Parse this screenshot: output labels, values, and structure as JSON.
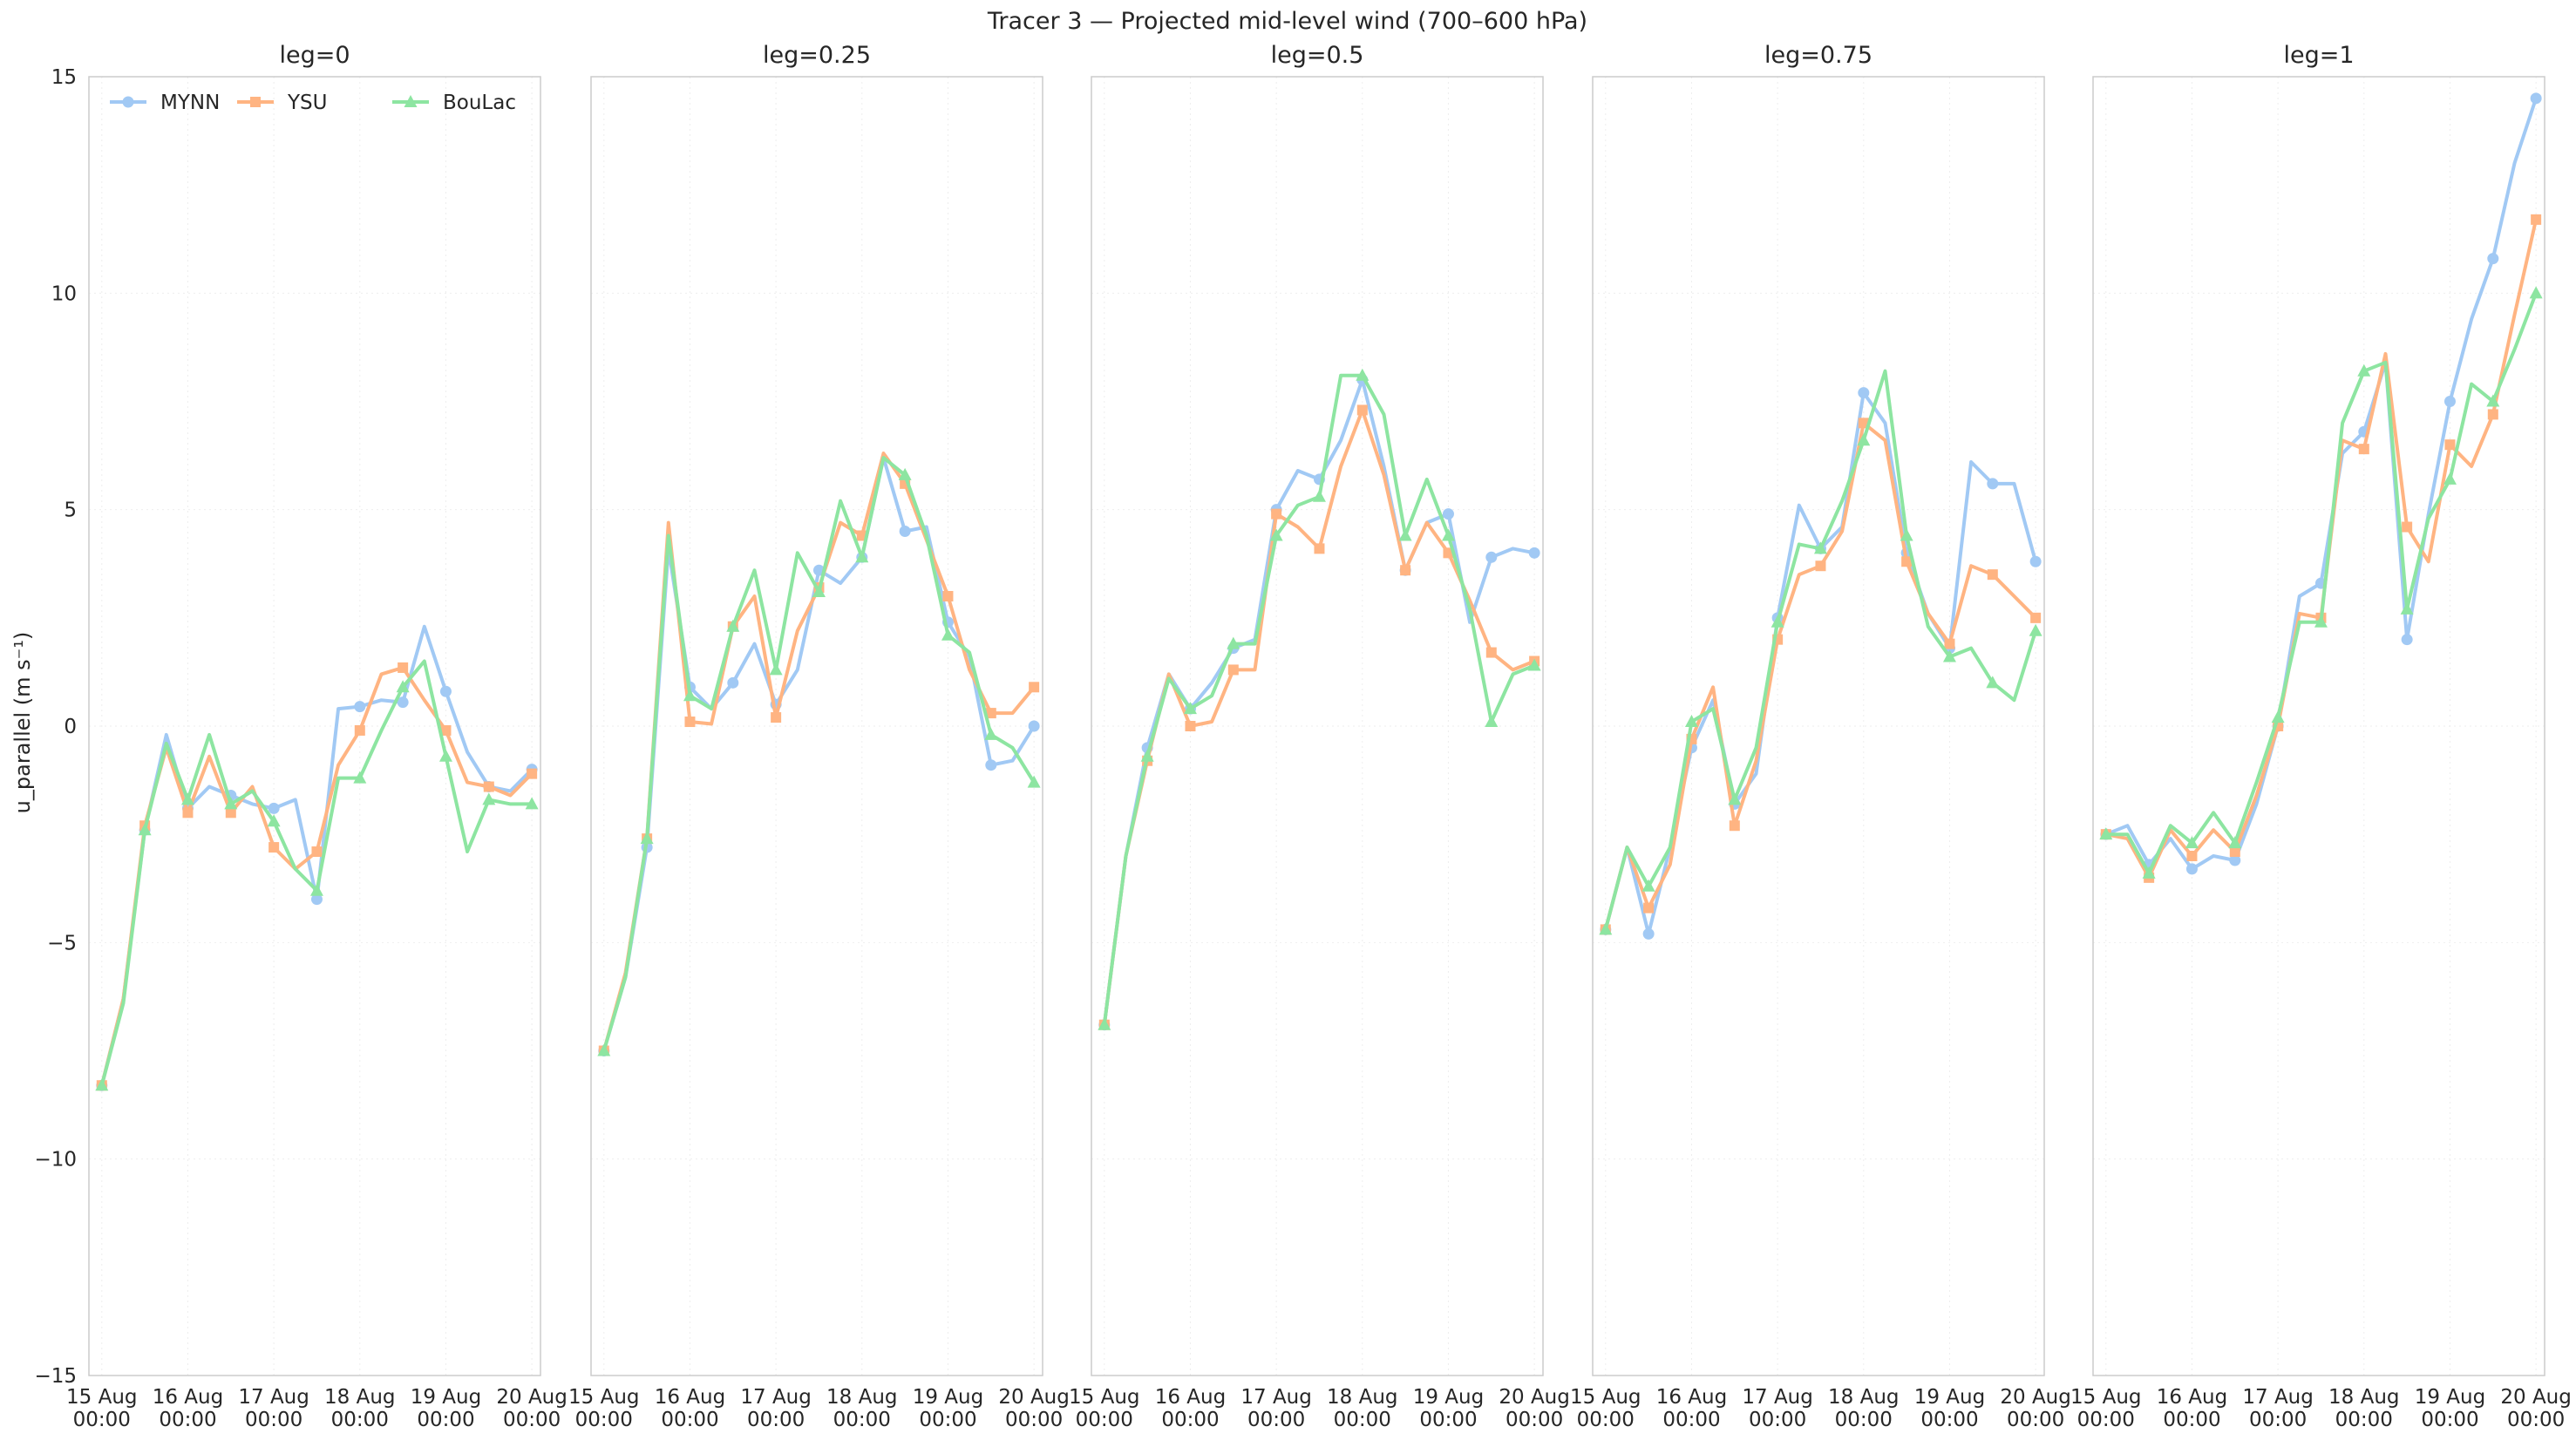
{
  "figure_title": "Tracer 3 — Projected mid-level wind (700–600 hPa)",
  "colors": {
    "MYNN": "#a1c9f4",
    "YSU": "#ffb482",
    "BouLac": "#8de5a1"
  },
  "chart_data": {
    "type": "line",
    "title": "Tracer 3 — Projected mid-level wind (700–600 hPa)",
    "ylabel": "u_parallel (m s⁻¹)",
    "ylim": [
      -15,
      15
    ],
    "yticks": [
      -15,
      -10,
      -5,
      0,
      5,
      10,
      15
    ],
    "xlim": [
      -0.15,
      5.1
    ],
    "xticks": [
      0,
      1,
      2,
      3,
      4,
      5
    ],
    "xtick_labels": [
      [
        "15 Aug",
        "00:00"
      ],
      [
        "16 Aug",
        "00:00"
      ],
      [
        "17 Aug",
        "00:00"
      ],
      [
        "18 Aug",
        "00:00"
      ],
      [
        "19 Aug",
        "00:00"
      ],
      [
        "20 Aug",
        "00:00"
      ]
    ],
    "x_unit": "days since 15 Aug 00:00",
    "grid": true,
    "legend": {
      "location": "upper-left",
      "panel": 0,
      "entries": [
        "MYNN",
        "YSU",
        "BouLac"
      ]
    },
    "panels": [
      {
        "title": "leg=0",
        "series": [
          {
            "name": "MYNN",
            "marker": "circle",
            "x": [
              0,
              0.25,
              0.5,
              0.75,
              1,
              1.25,
              1.5,
              1.75,
              2,
              2.25,
              2.5,
              2.75,
              3,
              3.25,
              3.5,
              3.75,
              4,
              4.25,
              4.5,
              4.75,
              5
            ],
            "y": [
              -8.3,
              -6.3,
              -2.4,
              -0.2,
              -1.9,
              -1.4,
              -1.6,
              -1.8,
              -1.9,
              -1.7,
              -4.0,
              0.4,
              0.45,
              0.6,
              0.55,
              2.3,
              0.8,
              -0.6,
              -1.4,
              -1.5,
              -1.0
            ]
          },
          {
            "name": "YSU",
            "marker": "square",
            "x": [
              0,
              0.25,
              0.5,
              0.75,
              1,
              1.25,
              1.5,
              1.75,
              2,
              2.25,
              2.5,
              2.75,
              3,
              3.25,
              3.5,
              3.75,
              4,
              4.25,
              4.5,
              4.75,
              5
            ],
            "y": [
              -8.3,
              -6.3,
              -2.3,
              -0.5,
              -2.0,
              -0.7,
              -2.0,
              -1.4,
              -2.8,
              -3.3,
              -2.9,
              -0.9,
              -0.1,
              1.2,
              1.35,
              0.6,
              -0.1,
              -1.3,
              -1.4,
              -1.6,
              -1.1
            ]
          },
          {
            "name": "BouLac",
            "marker": "triangle",
            "x": [
              0,
              0.25,
              0.5,
              0.75,
              1,
              1.25,
              1.5,
              1.75,
              2,
              2.25,
              2.5,
              2.75,
              3,
              3.25,
              3.5,
              3.75,
              4,
              4.25,
              4.5,
              4.75,
              5
            ],
            "y": [
              -8.3,
              -6.4,
              -2.4,
              -0.4,
              -1.7,
              -0.2,
              -1.8,
              -1.5,
              -2.2,
              -3.3,
              -3.8,
              -1.2,
              -1.2,
              -0.1,
              0.9,
              1.5,
              -0.7,
              -2.9,
              -1.7,
              -1.8,
              -1.8
            ]
          }
        ]
      },
      {
        "title": "leg=0.25",
        "series": [
          {
            "name": "MYNN",
            "marker": "circle",
            "x": [
              0,
              0.25,
              0.5,
              0.75,
              1,
              1.25,
              1.5,
              1.75,
              2,
              2.25,
              2.5,
              2.75,
              3,
              3.25,
              3.5,
              3.75,
              4,
              4.25,
              4.5,
              4.75,
              5
            ],
            "y": [
              -7.5,
              -5.8,
              -2.8,
              4.1,
              0.9,
              0.4,
              1.0,
              1.9,
              0.5,
              1.3,
              3.6,
              3.3,
              3.9,
              6.2,
              4.5,
              4.6,
              2.4,
              1.6,
              -0.9,
              -0.8,
              0.0
            ]
          },
          {
            "name": "YSU",
            "marker": "square",
            "x": [
              0,
              0.25,
              0.5,
              0.75,
              1,
              1.25,
              1.5,
              1.75,
              2,
              2.25,
              2.5,
              2.75,
              3,
              3.25,
              3.5,
              3.75,
              4,
              4.25,
              4.5,
              4.75,
              5
            ],
            "y": [
              -7.5,
              -5.7,
              -2.6,
              4.7,
              0.1,
              0.05,
              2.3,
              3.0,
              0.2,
              2.2,
              3.2,
              4.7,
              4.4,
              6.3,
              5.6,
              4.3,
              3.0,
              1.3,
              0.3,
              0.3,
              0.9
            ]
          },
          {
            "name": "BouLac",
            "marker": "triangle",
            "x": [
              0,
              0.25,
              0.5,
              0.75,
              1,
              1.25,
              1.5,
              1.75,
              2,
              2.25,
              2.5,
              2.75,
              3,
              3.25,
              3.5,
              3.75,
              4,
              4.25,
              4.5,
              4.75,
              5
            ],
            "y": [
              -7.5,
              -5.8,
              -2.6,
              4.4,
              0.7,
              0.4,
              2.3,
              3.6,
              1.3,
              4.0,
              3.1,
              5.2,
              3.9,
              6.2,
              5.8,
              4.4,
              2.1,
              1.7,
              -0.2,
              -0.5,
              -1.3
            ]
          }
        ]
      },
      {
        "title": "leg=0.5",
        "series": [
          {
            "name": "MYNN",
            "marker": "circle",
            "x": [
              0,
              0.25,
              0.5,
              0.75,
              1,
              1.25,
              1.5,
              1.75,
              2,
              2.25,
              2.5,
              2.75,
              3,
              3.25,
              3.5,
              3.75,
              4,
              4.25,
              4.5,
              4.75,
              5
            ],
            "y": [
              -6.9,
              -3.0,
              -0.5,
              1.2,
              0.4,
              1.0,
              1.8,
              2.0,
              5.0,
              5.9,
              5.7,
              6.6,
              8.0,
              6.0,
              3.6,
              4.7,
              4.9,
              2.4,
              3.9,
              4.1,
              4.0
            ]
          },
          {
            "name": "YSU",
            "marker": "square",
            "x": [
              0,
              0.25,
              0.5,
              0.75,
              1,
              1.25,
              1.5,
              1.75,
              2,
              2.25,
              2.5,
              2.75,
              3,
              3.25,
              3.5,
              3.75,
              4,
              4.25,
              4.5,
              4.75,
              5
            ],
            "y": [
              -6.9,
              -3.0,
              -0.8,
              1.2,
              0.0,
              0.1,
              1.3,
              1.3,
              4.9,
              4.6,
              4.1,
              6.0,
              7.3,
              5.8,
              3.6,
              4.7,
              4.0,
              2.9,
              1.7,
              1.3,
              1.5
            ]
          },
          {
            "name": "BouLac",
            "marker": "triangle",
            "x": [
              0,
              0.25,
              0.5,
              0.75,
              1,
              1.25,
              1.5,
              1.75,
              2,
              2.25,
              2.5,
              2.75,
              3,
              3.25,
              3.5,
              3.75,
              4,
              4.25,
              4.5,
              4.75,
              5
            ],
            "y": [
              -6.9,
              -3.0,
              -0.7,
              1.1,
              0.4,
              0.7,
              1.9,
              1.9,
              4.4,
              5.1,
              5.3,
              8.1,
              8.1,
              7.2,
              4.4,
              5.7,
              4.4,
              2.7,
              0.1,
              1.2,
              1.4
            ]
          }
        ]
      },
      {
        "title": "leg=0.75",
        "series": [
          {
            "name": "MYNN",
            "marker": "circle",
            "x": [
              0,
              0.25,
              0.5,
              0.75,
              1,
              1.25,
              1.5,
              1.75,
              2,
              2.25,
              2.5,
              2.75,
              3,
              3.25,
              3.5,
              3.75,
              4,
              4.25,
              4.5,
              4.75,
              5
            ],
            "y": [
              -4.7,
              -2.8,
              -4.8,
              -2.8,
              -0.5,
              0.6,
              -1.8,
              -1.1,
              2.5,
              5.1,
              4.1,
              4.6,
              7.7,
              7.0,
              4.0,
              2.6,
              1.8,
              6.1,
              5.6,
              5.6,
              3.8
            ]
          },
          {
            "name": "YSU",
            "marker": "square",
            "x": [
              0,
              0.25,
              0.5,
              0.75,
              1,
              1.25,
              1.5,
              1.75,
              2,
              2.25,
              2.5,
              2.75,
              3,
              3.25,
              3.5,
              3.75,
              4,
              4.25,
              4.5,
              4.75,
              5
            ],
            "y": [
              -4.7,
              -2.8,
              -4.2,
              -3.2,
              -0.3,
              0.9,
              -2.3,
              -0.8,
              2.0,
              3.5,
              3.7,
              4.5,
              7.0,
              6.6,
              3.8,
              2.6,
              1.9,
              3.7,
              3.5,
              3.0,
              2.5
            ]
          },
          {
            "name": "BouLac",
            "marker": "triangle",
            "x": [
              0,
              0.25,
              0.5,
              0.75,
              1,
              1.25,
              1.5,
              1.75,
              2,
              2.25,
              2.5,
              2.75,
              3,
              3.25,
              3.5,
              3.75,
              4,
              4.25,
              4.5,
              4.75,
              5
            ],
            "y": [
              -4.7,
              -2.8,
              -3.7,
              -2.8,
              0.1,
              0.4,
              -1.7,
              -0.5,
              2.4,
              4.2,
              4.1,
              5.2,
              6.6,
              8.2,
              4.4,
              2.3,
              1.6,
              1.8,
              1.0,
              0.6,
              2.2
            ]
          }
        ]
      },
      {
        "title": "leg=1",
        "series": [
          {
            "name": "MYNN",
            "marker": "circle",
            "x": [
              0,
              0.25,
              0.5,
              0.75,
              1,
              1.25,
              1.5,
              1.75,
              2,
              2.25,
              2.5,
              2.75,
              3,
              3.25,
              3.5,
              3.75,
              4,
              4.25,
              4.5,
              4.75,
              5
            ],
            "y": [
              -2.5,
              -2.3,
              -3.2,
              -2.6,
              -3.3,
              -3.0,
              -3.1,
              -1.8,
              0.0,
              3.0,
              3.3,
              6.3,
              6.8,
              8.4,
              2.0,
              4.9,
              7.5,
              9.4,
              10.8,
              13.0,
              14.5
            ]
          },
          {
            "name": "YSU",
            "marker": "square",
            "x": [
              0,
              0.25,
              0.5,
              0.75,
              1,
              1.25,
              1.5,
              1.75,
              2,
              2.25,
              2.5,
              2.75,
              3,
              3.25,
              3.5,
              3.75,
              4,
              4.25,
              4.5,
              4.75,
              5
            ],
            "y": [
              -2.5,
              -2.6,
              -3.5,
              -2.4,
              -3.0,
              -2.4,
              -2.9,
              -1.6,
              0.0,
              2.6,
              2.5,
              6.6,
              6.4,
              8.6,
              4.6,
              3.8,
              6.5,
              6.0,
              7.2,
              9.5,
              11.7
            ]
          },
          {
            "name": "BouLac",
            "marker": "triangle",
            "x": [
              0,
              0.25,
              0.5,
              0.75,
              1,
              1.25,
              1.5,
              1.75,
              2,
              2.25,
              2.5,
              2.75,
              3,
              3.25,
              3.5,
              3.75,
              4,
              4.25,
              4.5,
              4.75,
              5
            ],
            "y": [
              -2.5,
              -2.5,
              -3.4,
              -2.3,
              -2.7,
              -2.0,
              -2.7,
              -1.3,
              0.2,
              2.4,
              2.4,
              7.0,
              8.2,
              8.4,
              2.7,
              4.8,
              5.7,
              7.9,
              7.5,
              8.7,
              10.0
            ]
          }
        ]
      }
    ]
  }
}
